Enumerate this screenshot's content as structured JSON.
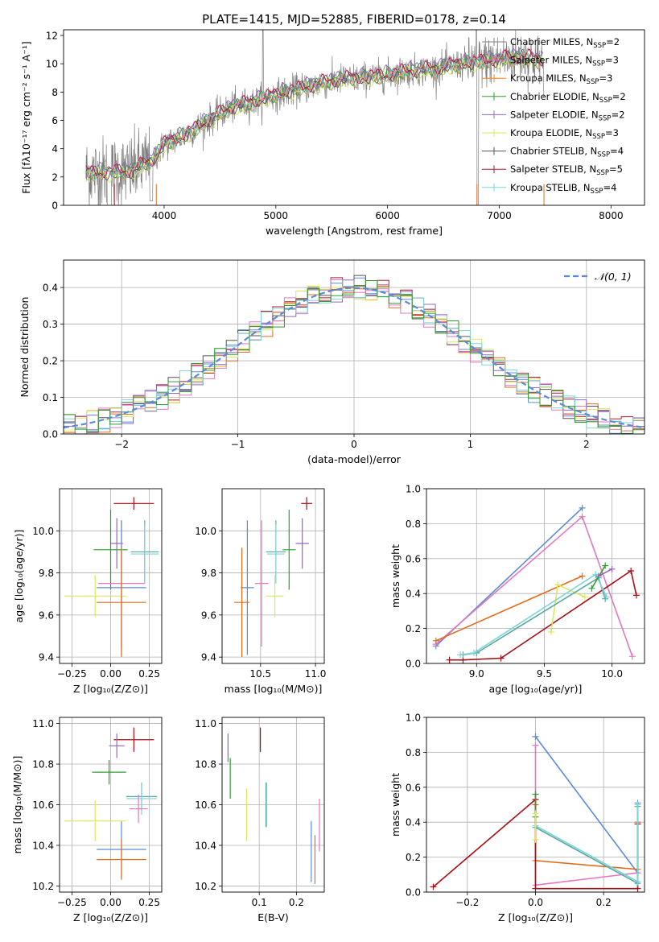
{
  "colors": {
    "chabrier_miles": "#808080",
    "salpeter_miles": "#e377c2",
    "kroupa_miles": "#ff7f0e",
    "chabrier_elodie": "#2ca02c",
    "salpeter_elodie": "#9467bd",
    "kroupa_elodie": "#dbe85c",
    "chabrier_stelib": "#555555",
    "salpeter_stelib": "#b2182b",
    "kroupa_stelib": "#7fd3d8",
    "blue": "#5b8bd8",
    "darkred": "#a50f15",
    "orange": "#e36c1b",
    "teal": "#56a8a0"
  },
  "chart_data": [
    {
      "id": "spectrum",
      "type": "line",
      "title": "PLATE=1415, MJD=52885, FIBERID=0178, z=0.14",
      "xlabel": "wavelength [Angstrom, rest frame]",
      "ylabel": "Flux [fλ10⁻¹⁷ erg cm⁻² s⁻¹ A⁻¹]",
      "xlim": [
        3100,
        8300
      ],
      "ylim": [
        0,
        12.4
      ],
      "xticks": [
        4000,
        5000,
        6000,
        7000,
        8000
      ],
      "yticks": [
        0,
        2,
        4,
        6,
        8,
        10,
        12
      ],
      "legend_position": "upper-right",
      "legend": [
        {
          "label": "Chabrier MILES, N",
          "sub": "SSP",
          "tail": "=2"
        },
        {
          "label": "Salpeter MILES, N",
          "sub": "SSP",
          "tail": "=3"
        },
        {
          "label": "Kroupa MILES, N",
          "sub": "SSP",
          "tail": "=3"
        },
        {
          "label": "Chabrier ELODIE, N",
          "sub": "SSP",
          "tail": "=2"
        },
        {
          "label": "Salpeter ELODIE, N",
          "sub": "SSP",
          "tail": "=2"
        },
        {
          "label": "Kroupa ELODIE, N",
          "sub": "SSP",
          "tail": "=3"
        },
        {
          "label": "Chabrier STELIB, N",
          "sub": "SSP",
          "tail": "=4"
        },
        {
          "label": "Salpeter STELIB, N",
          "sub": "SSP",
          "tail": "=5"
        },
        {
          "label": "Kroupa STELIB, N",
          "sub": "SSP",
          "tail": "=4"
        }
      ],
      "continuum_x": [
        3300,
        3500,
        3700,
        3900,
        4000,
        4200,
        4400,
        4600,
        4800,
        5000,
        5200,
        5400,
        5600,
        5800,
        6000,
        6200,
        6400,
        6600,
        6800,
        7000,
        7200,
        7400
      ],
      "continuum_y": [
        2.3,
        2.3,
        2.4,
        3.2,
        4.3,
        5.0,
        6.0,
        6.9,
        7.3,
        7.8,
        8.2,
        8.6,
        8.9,
        9.0,
        9.2,
        9.5,
        9.6,
        9.9,
        10.1,
        10.3,
        10.5,
        10.2
      ]
    },
    {
      "id": "residuals",
      "type": "line",
      "xlabel": "(data-model)/error",
      "ylabel": "Normed distribution",
      "xlim": [
        -2.5,
        2.5
      ],
      "ylim": [
        0,
        0.475
      ],
      "xticks": [
        -2,
        -1,
        0,
        1,
        2
      ],
      "yticks": [
        0.0,
        0.1,
        0.2,
        0.3,
        0.4
      ],
      "legend_label": "𝒩(0, 1)",
      "legend_position": "upper-right",
      "grid": true
    },
    {
      "id": "age_vs_Z",
      "type": "scatter",
      "xlabel": "Z [log₁₀(Z/Z⊙)]",
      "ylabel": "age  [log₁₀(age/yr)]",
      "xlim": [
        -0.33,
        0.33
      ],
      "ylim": [
        9.37,
        10.2
      ],
      "xticks": [
        -0.25,
        0.0,
        0.25
      ],
      "yticks": [
        9.4,
        9.6,
        9.8,
        10.0
      ],
      "grid": true,
      "points": [
        {
          "x": 0.15,
          "y": 10.13,
          "xe": 0.13,
          "ye": 0.03,
          "c": "darkred"
        },
        {
          "x": 0.04,
          "y": 9.94,
          "xe": 0.04,
          "ye": 0.12,
          "c": "salpeter_elodie"
        },
        {
          "x": 0.0,
          "y": 9.91,
          "xe": 0.11,
          "ye": 0.19,
          "c": "chabrier_elodie"
        },
        {
          "x": 0.22,
          "y": 9.9,
          "xe": 0.09,
          "ye": 0.15,
          "c": "teal"
        },
        {
          "x": 0.22,
          "y": 9.89,
          "xe": 0.09,
          "ye": 0.14,
          "c": "kroupa_stelib"
        },
        {
          "x": 0.07,
          "y": 9.75,
          "xe": 0.15,
          "ye": 0.3,
          "c": "salpeter_miles"
        },
        {
          "x": 0.07,
          "y": 9.73,
          "xe": 0.16,
          "ye": 0.32,
          "c": "blue"
        },
        {
          "x": -0.1,
          "y": 9.69,
          "xe": 0.2,
          "ye": 0.1,
          "c": "kroupa_elodie"
        },
        {
          "x": 0.07,
          "y": 9.66,
          "xe": 0.16,
          "ye": 0.26,
          "c": "orange"
        }
      ]
    },
    {
      "id": "age_vs_mass",
      "type": "scatter",
      "xlabel": "mass [log₁₀(M/M⊙)]",
      "ylabel": "",
      "xlim": [
        10.15,
        11.08
      ],
      "ylim": [
        9.37,
        10.2
      ],
      "xticks": [
        10.5,
        11.0
      ],
      "yticks": [
        9.4,
        9.6,
        9.8,
        10.0
      ],
      "grid": true,
      "points": [
        {
          "x": 10.92,
          "y": 10.13,
          "xe": 0.05,
          "ye": 0.03,
          "c": "darkred"
        },
        {
          "x": 10.88,
          "y": 9.94,
          "xe": 0.06,
          "ye": 0.12,
          "c": "salpeter_elodie"
        },
        {
          "x": 10.76,
          "y": 9.91,
          "xe": 0.06,
          "ye": 0.19,
          "c": "chabrier_elodie"
        },
        {
          "x": 10.64,
          "y": 9.9,
          "xe": 0.09,
          "ye": 0.15,
          "c": "teal"
        },
        {
          "x": 10.64,
          "y": 9.89,
          "xe": 0.08,
          "ye": 0.14,
          "c": "kroupa_stelib"
        },
        {
          "x": 10.51,
          "y": 9.75,
          "xe": 0.06,
          "ye": 0.3,
          "c": "salpeter_miles"
        },
        {
          "x": 10.38,
          "y": 9.73,
          "xe": 0.06,
          "ye": 0.32,
          "c": "blue"
        },
        {
          "x": 10.63,
          "y": 9.69,
          "xe": 0.08,
          "ye": 0.1,
          "c": "kroupa_elodie"
        },
        {
          "x": 10.33,
          "y": 9.66,
          "xe": 0.07,
          "ye": 0.26,
          "c": "orange"
        }
      ]
    },
    {
      "id": "weight_vs_age",
      "type": "line",
      "xlabel": "age  [log₁₀(age/yr)]",
      "ylabel": "mass weight",
      "xlim": [
        8.63,
        10.24
      ],
      "ylim": [
        0,
        1.0
      ],
      "xticks": [
        9.0,
        9.5,
        10.0
      ],
      "yticks": [
        0.0,
        0.2,
        0.4,
        0.6,
        0.8,
        1.0
      ],
      "grid": true,
      "series": [
        {
          "c": "blue",
          "x": [
            8.7,
            9.78
          ],
          "y": [
            0.1,
            0.89
          ]
        },
        {
          "c": "salpeter_miles",
          "x": [
            8.7,
            9.78,
            10.15
          ],
          "y": [
            0.11,
            0.84,
            0.04
          ]
        },
        {
          "c": "orange",
          "x": [
            8.7,
            9.78
          ],
          "y": [
            0.13,
            0.5
          ]
        },
        {
          "c": "darkred",
          "x": [
            8.8,
            8.9,
            9.18,
            10.14,
            10.18
          ],
          "y": [
            0.02,
            0.02,
            0.03,
            0.53,
            0.39
          ]
        },
        {
          "c": "kroupa_elodie",
          "x": [
            9.55,
            9.6,
            9.8
          ],
          "y": [
            0.18,
            0.45,
            0.38
          ]
        },
        {
          "c": "teal",
          "x": [
            8.9,
            9.0,
            9.9,
            9.95
          ],
          "y": [
            0.05,
            0.06,
            0.49,
            0.37
          ]
        },
        {
          "c": "kroupa_stelib",
          "x": [
            8.88,
            8.98,
            9.88,
            9.96
          ],
          "y": [
            0.05,
            0.06,
            0.51,
            0.38
          ]
        },
        {
          "c": "chabrier_elodie",
          "x": [
            9.85,
            9.95
          ],
          "y": [
            0.43,
            0.56
          ]
        },
        {
          "c": "salpeter_elodie",
          "x": [
            9.9,
            10.0
          ],
          "y": [
            0.5,
            0.54
          ]
        }
      ]
    },
    {
      "id": "mass_vs_Z",
      "type": "scatter",
      "xlabel": "Z [log₁₀(Z/Z⊙)]",
      "ylabel": "mass [log₁₀(M/M⊙)]",
      "xlim": [
        -0.33,
        0.33
      ],
      "ylim": [
        10.17,
        11.03
      ],
      "xticks": [
        -0.25,
        0.0,
        0.25
      ],
      "yticks": [
        10.2,
        10.4,
        10.6,
        10.8,
        11.0
      ],
      "grid": true,
      "points": [
        {
          "x": 0.15,
          "y": 10.92,
          "xe": 0.13,
          "ye": 0.06,
          "c": "darkred"
        },
        {
          "x": 0.04,
          "y": 10.89,
          "xe": 0.05,
          "ye": 0.06,
          "c": "salpeter_elodie"
        },
        {
          "x": -0.01,
          "y": 10.76,
          "xe": 0.11,
          "ye": 0.06,
          "c": "chabrier_elodie"
        },
        {
          "x": 0.2,
          "y": 10.64,
          "xe": 0.1,
          "ye": 0.07,
          "c": "teal"
        },
        {
          "x": 0.2,
          "y": 10.63,
          "xe": 0.1,
          "ye": 0.08,
          "c": "kroupa_stelib"
        },
        {
          "x": 0.07,
          "y": 10.38,
          "xe": 0.16,
          "ye": 0.14,
          "c": "blue"
        },
        {
          "x": 0.18,
          "y": 10.58,
          "xe": 0.06,
          "ye": 0.07,
          "c": "salpeter_miles"
        },
        {
          "x": -0.1,
          "y": 10.52,
          "xe": 0.2,
          "ye": 0.1,
          "c": "kroupa_elodie"
        },
        {
          "x": 0.07,
          "y": 10.33,
          "xe": 0.16,
          "ye": 0.1,
          "c": "orange"
        }
      ]
    },
    {
      "id": "mass_vs_ebv",
      "type": "scatter",
      "xlabel": "E(B-V)",
      "ylabel": "",
      "xlim": [
        0.0,
        0.275
      ],
      "ylim": [
        10.17,
        11.03
      ],
      "xticks": [
        0.1,
        0.2
      ],
      "yticks": [
        10.2,
        10.4,
        10.6,
        10.8,
        11.0
      ],
      "grid": true,
      "points": [
        {
          "x": 0.103,
          "y": 10.92,
          "xe": 0.0,
          "ye": 0.06,
          "c": "darkred"
        },
        {
          "x": 0.016,
          "y": 10.88,
          "xe": 0.0,
          "ye": 0.07,
          "c": "salpeter_elodie"
        },
        {
          "x": 0.022,
          "y": 10.73,
          "xe": 0.0,
          "ye": 0.1,
          "c": "chabrier_elodie"
        },
        {
          "x": 0.118,
          "y": 10.6,
          "xe": 0.0,
          "ye": 0.11,
          "c": "teal"
        },
        {
          "x": 0.12,
          "y": 10.6,
          "xe": 0.0,
          "ye": 0.11,
          "c": "kroupa_stelib"
        },
        {
          "x": 0.24,
          "y": 10.37,
          "xe": 0.0,
          "ye": 0.15,
          "c": "blue"
        },
        {
          "x": 0.262,
          "y": 10.5,
          "xe": 0.0,
          "ye": 0.13,
          "c": "salpeter_miles"
        },
        {
          "x": 0.066,
          "y": 10.55,
          "xe": 0.0,
          "ye": 0.13,
          "c": "kroupa_elodie"
        },
        {
          "x": 0.25,
          "y": 10.33,
          "xe": 0.0,
          "ye": 0.12,
          "c": "orange"
        }
      ]
    },
    {
      "id": "weight_vs_Z",
      "type": "line",
      "xlabel": "Z [log₁₀(Z/Z⊙)]",
      "ylabel": "mass weight",
      "xlim": [
        -0.32,
        0.32
      ],
      "ylim": [
        0,
        1.0
      ],
      "xticks": [
        -0.2,
        0.0,
        0.2
      ],
      "yticks": [
        0.0,
        0.2,
        0.4,
        0.6,
        0.8,
        1.0
      ],
      "grid": true,
      "series": [
        {
          "c": "blue",
          "x": [
            0.0,
            0.3,
            0.3
          ],
          "y": [
            0.89,
            0.11,
            0.51
          ]
        },
        {
          "c": "salpeter_miles",
          "x": [
            0.0,
            0.0,
            0.3
          ],
          "y": [
            0.84,
            0.04,
            0.11
          ]
        },
        {
          "c": "orange",
          "x": [
            0.0,
            0.0,
            0.3,
            0.3
          ],
          "y": [
            0.5,
            0.18,
            0.13,
            0.4
          ]
        },
        {
          "c": "darkred",
          "x": [
            -0.3,
            0.0,
            0.0,
            0.3,
            0.3
          ],
          "y": [
            0.03,
            0.53,
            0.02,
            0.02,
            0.39
          ]
        },
        {
          "c": "teal",
          "x": [
            0.0,
            0.3,
            0.3
          ],
          "y": [
            0.37,
            0.05,
            0.49
          ]
        },
        {
          "c": "kroupa_stelib",
          "x": [
            0.0,
            0.3,
            0.3
          ],
          "y": [
            0.38,
            0.06,
            0.5
          ]
        },
        {
          "c": "chabrier_elodie",
          "x": [
            0.0,
            0.0
          ],
          "y": [
            0.43,
            0.56
          ]
        },
        {
          "c": "kroupa_elodie",
          "x": [
            0.0,
            0.0
          ],
          "y": [
            0.3,
            0.45
          ]
        }
      ]
    }
  ]
}
